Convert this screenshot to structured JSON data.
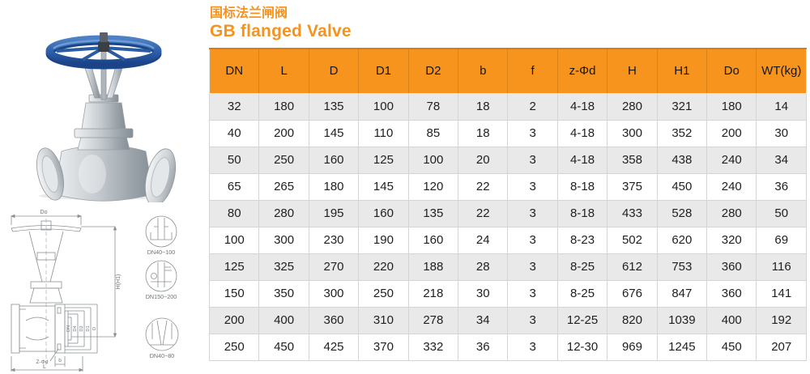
{
  "title": {
    "zh": "国标法兰闸阀",
    "en": "GB flanged Valve"
  },
  "colors": {
    "accent_orange": "#F7941E",
    "row_alt_gray": "#E9E9E9",
    "handwheel_blue": "#2E62AC"
  },
  "icons": {
    "photo": "gate-valve-photo",
    "drawing": "gate-valve-dimension-drawing"
  },
  "table": {
    "columns": [
      "DN",
      "L",
      "D",
      "D1",
      "D2",
      "b",
      "f",
      "z-Φd",
      "H",
      "H1",
      "Do",
      "WT(kg)"
    ],
    "rows": [
      [
        "32",
        "180",
        "135",
        "100",
        "78",
        "18",
        "2",
        "4-18",
        "280",
        "321",
        "180",
        "14"
      ],
      [
        "40",
        "200",
        "145",
        "110",
        "85",
        "18",
        "3",
        "4-18",
        "300",
        "352",
        "200",
        "30"
      ],
      [
        "50",
        "250",
        "160",
        "125",
        "100",
        "20",
        "3",
        "4-18",
        "358",
        "438",
        "240",
        "34"
      ],
      [
        "65",
        "265",
        "180",
        "145",
        "120",
        "22",
        "3",
        "8-18",
        "375",
        "450",
        "240",
        "36"
      ],
      [
        "80",
        "280",
        "195",
        "160",
        "135",
        "22",
        "3",
        "8-18",
        "433",
        "528",
        "280",
        "50"
      ],
      [
        "100",
        "300",
        "230",
        "190",
        "160",
        "24",
        "3",
        "8-23",
        "502",
        "620",
        "320",
        "69"
      ],
      [
        "125",
        "325",
        "270",
        "220",
        "188",
        "28",
        "3",
        "8-25",
        "612",
        "753",
        "360",
        "116"
      ],
      [
        "150",
        "350",
        "300",
        "250",
        "218",
        "30",
        "3",
        "8-25",
        "676",
        "847",
        "360",
        "141"
      ],
      [
        "200",
        "400",
        "360",
        "310",
        "278",
        "34",
        "3",
        "12-25",
        "820",
        "1039",
        "400",
        "192"
      ],
      [
        "250",
        "450",
        "425",
        "370",
        "332",
        "36",
        "3",
        "12-30",
        "969",
        "1245",
        "450",
        "207"
      ]
    ]
  },
  "drawing": {
    "dim_top": "Do",
    "dim_right": "H(H1)",
    "dim_bottom": "L",
    "dim_b": "b",
    "dim_bolt": "Z-Φd",
    "flange_dims": [
      "DN",
      "D4",
      "D2",
      "D1",
      "D"
    ],
    "details": [
      "DN40~100",
      "DN150~200",
      "DN40~80"
    ]
  }
}
